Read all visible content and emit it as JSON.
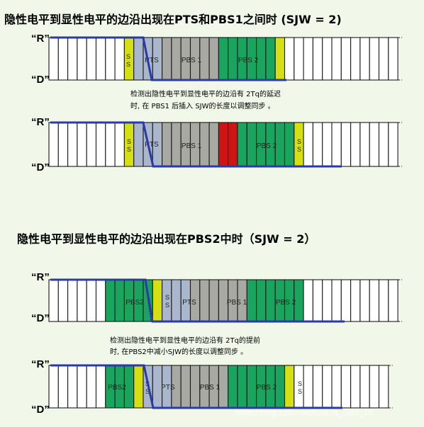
{
  "sections": [
    {
      "title": "隐性电平到显性电平的边沿出现在PTS和PBS1之间时 (SJW = 2)",
      "note_lines": [
        "检测出隐性电平到显性电平的边沿有  2Tq的延迟",
        "时, 在 PBS1 后插入 SJW的长度以调整同步 。"
      ]
    },
    {
      "title": "隐性电平到显性电平的边沿出现在PBS2中时（SJW = 2）",
      "note_lines": [
        "检测出隐性电平到显性电平的边沿有  2Tq的提前",
        "时, 在PBS2中减小SJW的长度以调整同步 。"
      ]
    }
  ],
  "level_labels": {
    "recessive": "“R”",
    "dominant": "“D”"
  },
  "segment_labels": {
    "ss": "S\nS",
    "pts": "PTS",
    "pbs1": "PBS 1",
    "pbs2": "PBS 2",
    "pbs2_short": "PBS2",
    "pts_compact": "PTS",
    "pbs1_spaced": "PBS 1",
    "pbs2_spaced": "PBS 2"
  },
  "colors": {
    "background": "#f1f8e9",
    "ss": "#d6df12",
    "pts": "#a9b6cc",
    "pbs1": "#a7a9a2",
    "pbs2": "#1aa55f",
    "inserted": "#cf1414",
    "empty": "#ffffff",
    "signal": "#2a3aa6"
  },
  "watermark": "https://blog.csdn.net/CSDN_Gao_16"
}
